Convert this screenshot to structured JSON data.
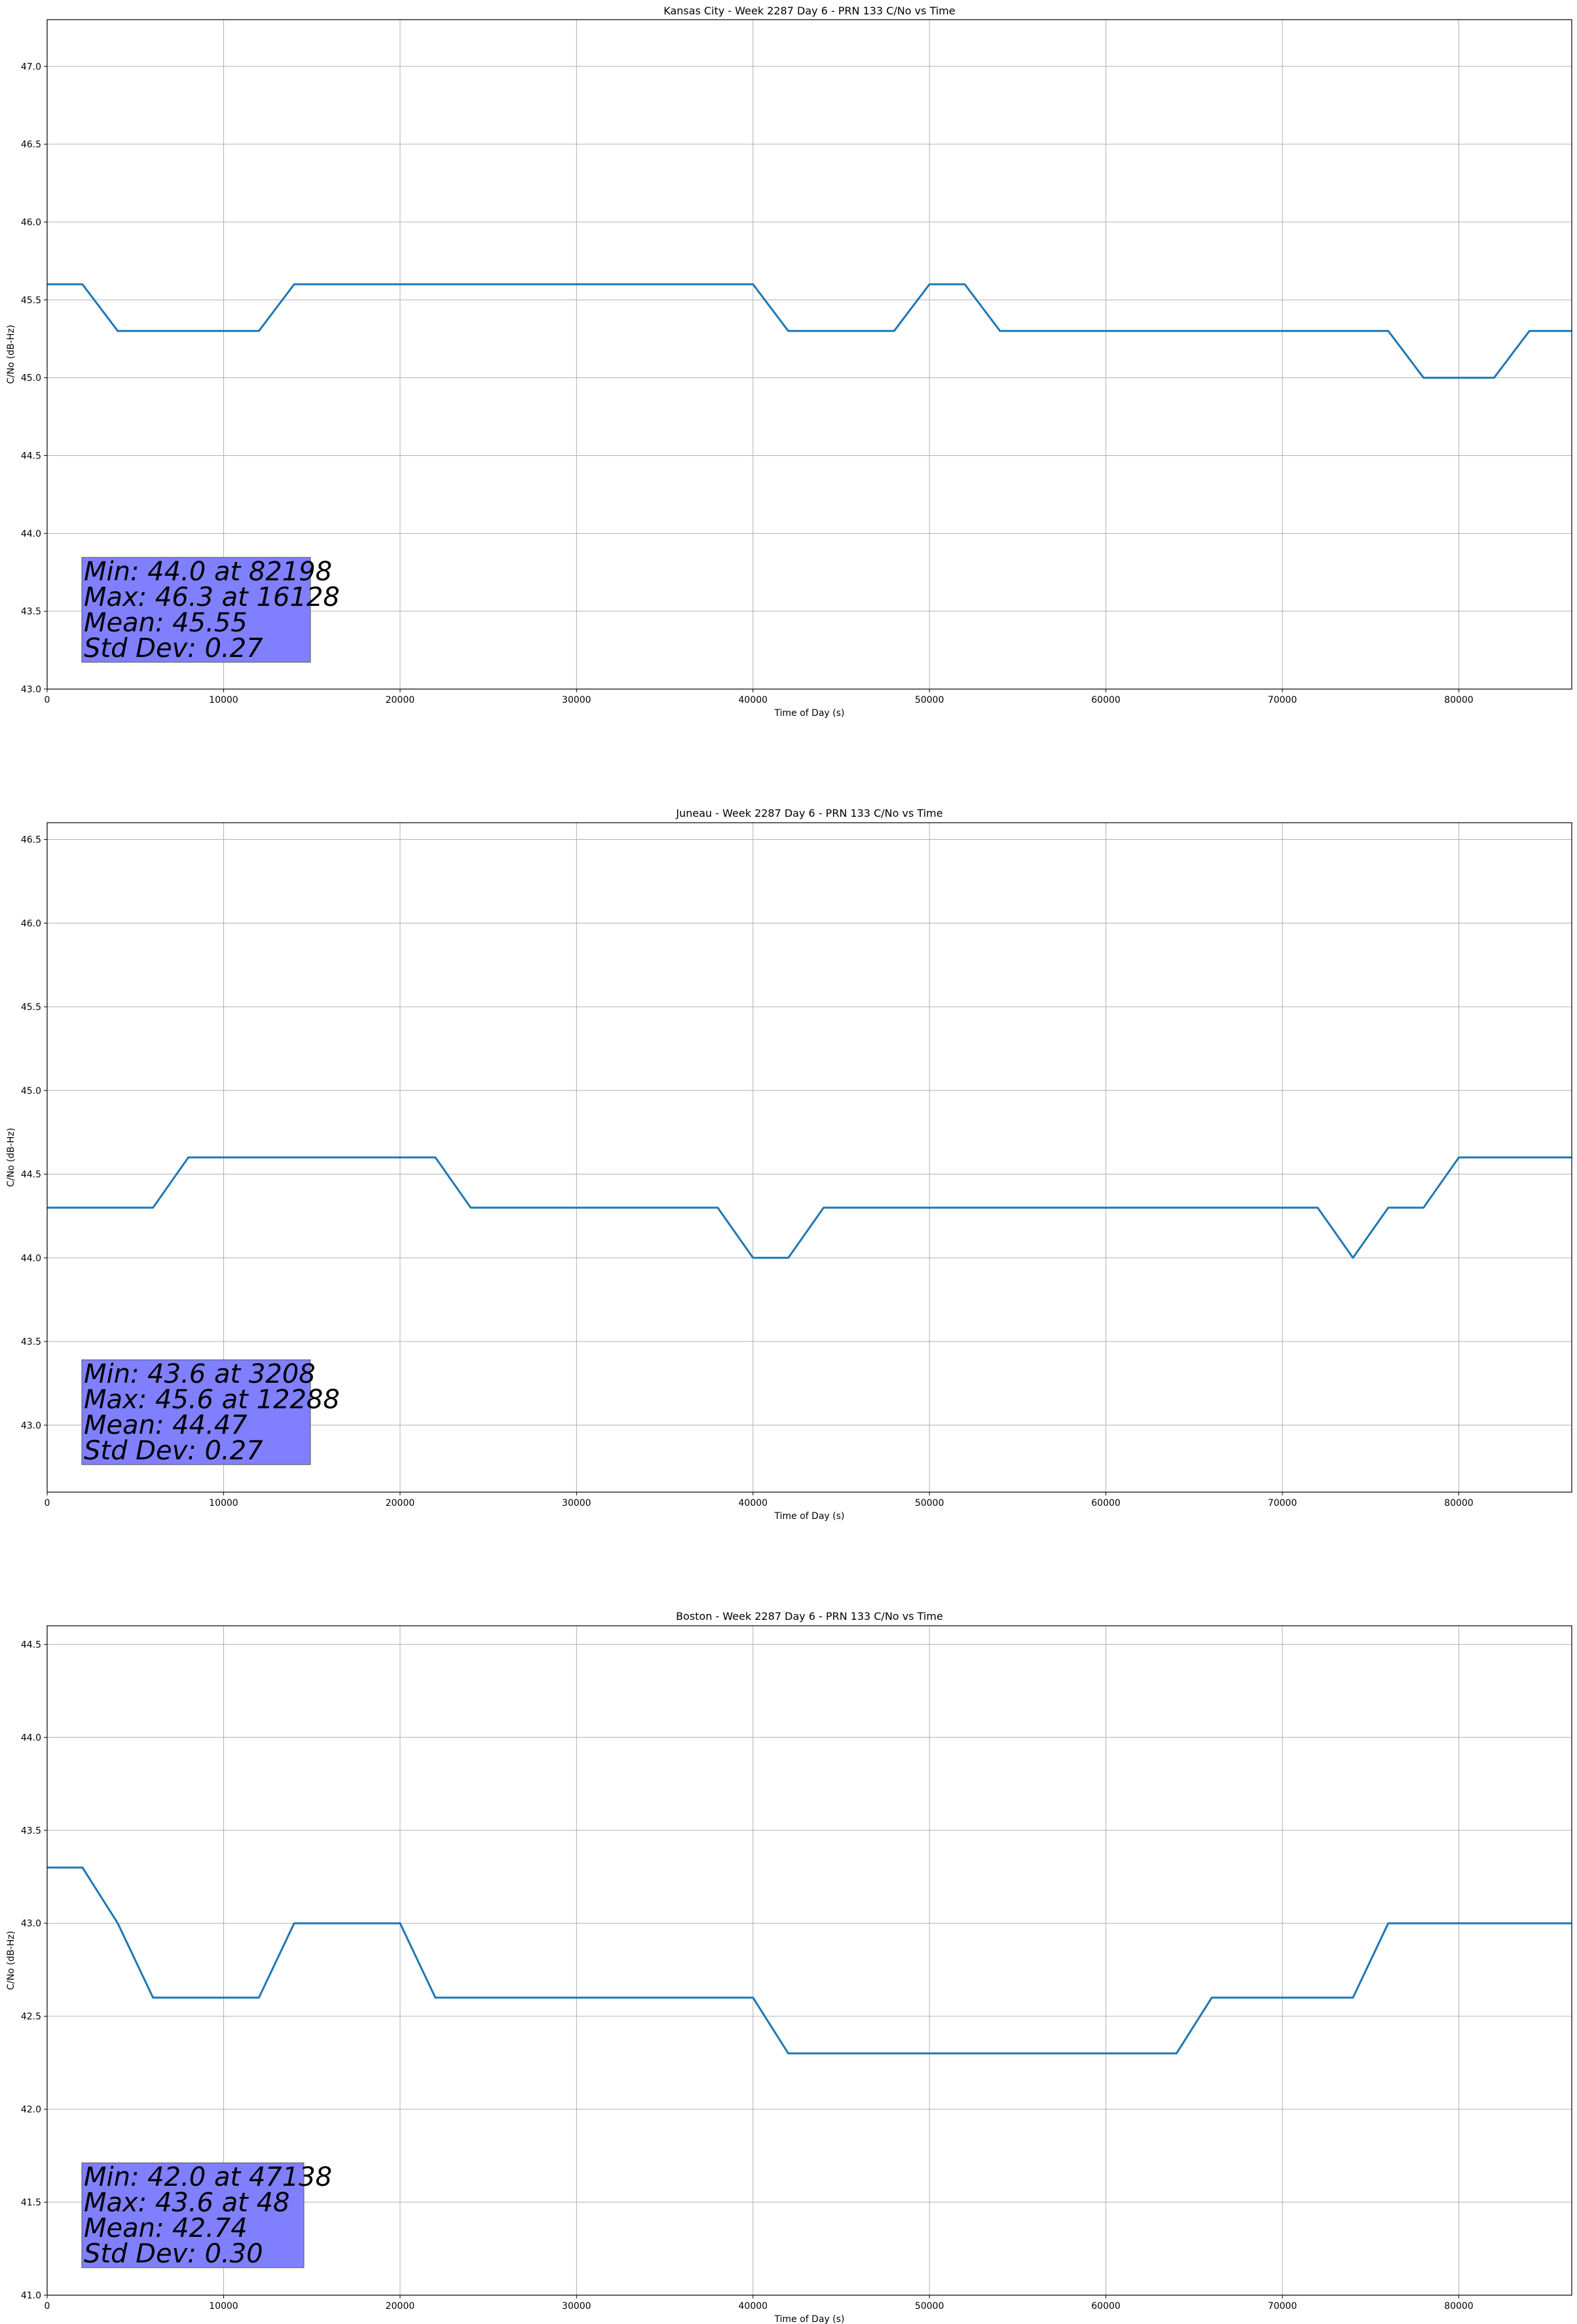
{
  "colors": {
    "series": "#1f77b4",
    "grid": "#b0b0b0",
    "stats_box_fill": "#8080ff",
    "stats_box_edge": "#555555"
  },
  "chart_data": [
    {
      "type": "line",
      "title": "Kansas City - Week 2287 Day 6 - PRN 133 C/No vs Time",
      "xlabel": "Time of Day (s)",
      "ylabel": "C/No (dB-Hz)",
      "xlim": [
        0,
        86400
      ],
      "ylim": [
        43.0,
        47.3
      ],
      "xticks": [
        0,
        10000,
        20000,
        30000,
        40000,
        50000,
        60000,
        70000,
        80000
      ],
      "yticks": [
        43.0,
        43.5,
        44.0,
        44.5,
        45.0,
        45.5,
        46.0,
        46.5,
        47.0
      ],
      "grid": true,
      "stats_lines": [
        "Min: 44.0 at 82198",
        "Max: 46.3 at 16128",
        "Mean: 45.55",
        "Std Dev: 0.27"
      ],
      "series": [
        {
          "x": [
            0,
            2000,
            4000,
            6000,
            8000,
            10000,
            12000,
            14000,
            16000,
            18000,
            20000,
            22000,
            24000,
            26000,
            28000,
            30000,
            32000,
            34000,
            36000,
            38000,
            40000,
            42000,
            44000,
            46000,
            48000,
            50000,
            52000,
            54000,
            56000,
            58000,
            60000,
            62000,
            64000,
            66000,
            68000,
            70000,
            72000,
            74000,
            76000,
            78000,
            80000,
            82000,
            84000,
            86400
          ],
          "y": [
            45.6,
            45.6,
            45.3,
            45.3,
            45.3,
            45.3,
            45.3,
            45.6,
            45.6,
            45.6,
            45.6,
            45.6,
            45.6,
            45.6,
            45.6,
            45.6,
            45.6,
            45.6,
            45.6,
            45.6,
            45.6,
            45.3,
            45.3,
            45.3,
            45.3,
            45.6,
            45.6,
            45.3,
            45.3,
            45.3,
            45.3,
            45.3,
            45.3,
            45.3,
            45.3,
            45.3,
            45.3,
            45.3,
            45.3,
            45.0,
            45.0,
            45.0,
            45.3,
            45.3
          ]
        }
      ]
    },
    {
      "type": "line",
      "title": "Juneau - Week 2287 Day 6 - PRN 133 C/No vs Time",
      "xlabel": "Time of Day (s)",
      "ylabel": "C/No (dB-Hz)",
      "xlim": [
        0,
        86400
      ],
      "ylim": [
        42.6,
        46.6
      ],
      "xticks": [
        0,
        10000,
        20000,
        30000,
        40000,
        50000,
        60000,
        70000,
        80000
      ],
      "yticks": [
        43.0,
        43.5,
        44.0,
        44.5,
        45.0,
        45.5,
        46.0,
        46.5
      ],
      "grid": true,
      "stats_lines": [
        "Min: 43.6 at 3208",
        "Max: 45.6 at 12288",
        "Mean: 44.47",
        "Std Dev: 0.27"
      ],
      "series": [
        {
          "x": [
            0,
            2000,
            4000,
            6000,
            8000,
            10000,
            12000,
            14000,
            16000,
            18000,
            20000,
            22000,
            24000,
            26000,
            28000,
            30000,
            32000,
            34000,
            36000,
            38000,
            40000,
            42000,
            44000,
            46000,
            48000,
            50000,
            52000,
            54000,
            56000,
            58000,
            60000,
            62000,
            64000,
            66000,
            68000,
            70000,
            72000,
            74000,
            76000,
            78000,
            80000,
            82000,
            84000,
            86400
          ],
          "y": [
            44.3,
            44.3,
            44.3,
            44.3,
            44.6,
            44.6,
            44.6,
            44.6,
            44.6,
            44.6,
            44.6,
            44.6,
            44.3,
            44.3,
            44.3,
            44.3,
            44.3,
            44.3,
            44.3,
            44.3,
            44.0,
            44.0,
            44.3,
            44.3,
            44.3,
            44.3,
            44.3,
            44.3,
            44.3,
            44.3,
            44.3,
            44.3,
            44.3,
            44.3,
            44.3,
            44.3,
            44.3,
            44.0,
            44.3,
            44.3,
            44.6,
            44.6,
            44.6,
            44.6
          ]
        }
      ]
    },
    {
      "type": "line",
      "title": "Boston - Week 2287 Day 6 - PRN 133 C/No vs Time",
      "xlabel": "Time of Day (s)",
      "ylabel": "C/No (dB-Hz)",
      "xlim": [
        0,
        86400
      ],
      "ylim": [
        41.0,
        44.6
      ],
      "xticks": [
        0,
        10000,
        20000,
        30000,
        40000,
        50000,
        60000,
        70000,
        80000
      ],
      "yticks": [
        41.0,
        41.5,
        42.0,
        42.5,
        43.0,
        43.5,
        44.0,
        44.5
      ],
      "grid": true,
      "stats_lines": [
        "Min: 42.0 at 47138",
        "Max: 43.6 at 48",
        "Mean: 42.74",
        "Std Dev: 0.30"
      ],
      "series": [
        {
          "x": [
            0,
            2000,
            4000,
            6000,
            8000,
            10000,
            12000,
            14000,
            16000,
            18000,
            20000,
            22000,
            24000,
            26000,
            28000,
            30000,
            32000,
            34000,
            36000,
            38000,
            40000,
            42000,
            44000,
            46000,
            48000,
            50000,
            52000,
            54000,
            56000,
            58000,
            60000,
            62000,
            64000,
            66000,
            68000,
            70000,
            72000,
            74000,
            76000,
            78000,
            80000,
            82000,
            84000,
            86400
          ],
          "y": [
            43.3,
            43.3,
            43.0,
            42.6,
            42.6,
            42.6,
            42.6,
            43.0,
            43.0,
            43.0,
            43.0,
            42.6,
            42.6,
            42.6,
            42.6,
            42.6,
            42.6,
            42.6,
            42.6,
            42.6,
            42.6,
            42.3,
            42.3,
            42.3,
            42.3,
            42.3,
            42.3,
            42.3,
            42.3,
            42.3,
            42.3,
            42.3,
            42.3,
            42.6,
            42.6,
            42.6,
            42.6,
            42.6,
            43.0,
            43.0,
            43.0,
            43.0,
            43.0,
            43.0
          ]
        }
      ]
    }
  ]
}
